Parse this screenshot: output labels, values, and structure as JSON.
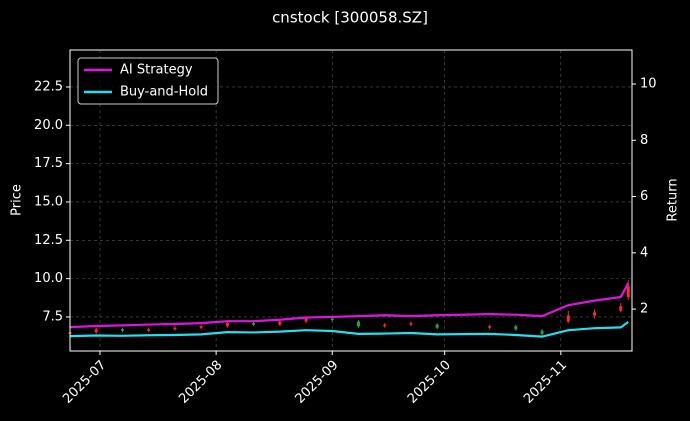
{
  "chart_data": {
    "type": "candlestick",
    "title": "cnstock [300058.SZ]",
    "y_label": "Price",
    "y2_label": "Return",
    "x": [
      "2025-06-23",
      "2025-06-30",
      "2025-07-07",
      "2025-07-14",
      "2025-07-21",
      "2025-07-28",
      "2025-08-04",
      "2025-08-11",
      "2025-08-18",
      "2025-08-25",
      "2025-09-01",
      "2025-09-08",
      "2025-09-15",
      "2025-09-22",
      "2025-09-29",
      "2025-10-13",
      "2025-10-20",
      "2025-10-27",
      "2025-11-03",
      "2025-11-10",
      "2025-11-17",
      "2025-11-19"
    ],
    "ohlc": {
      "open": [
        6.4,
        6.5,
        6.7,
        6.6,
        6.7,
        6.8,
        6.9,
        7.1,
        7.0,
        7.2,
        7.4,
        7.2,
        6.9,
        7.0,
        7.0,
        6.8,
        6.9,
        6.6,
        7.2,
        7.6,
        7.9,
        8.8
      ],
      "high": [
        6.6,
        6.8,
        6.8,
        6.8,
        6.9,
        7.0,
        7.2,
        7.2,
        7.3,
        7.5,
        7.5,
        7.3,
        7.1,
        7.2,
        7.1,
        7.0,
        7.0,
        6.7,
        7.9,
        8.0,
        8.4,
        9.9
      ],
      "low": [
        6.3,
        6.4,
        6.5,
        6.5,
        6.6,
        6.7,
        6.8,
        6.9,
        6.9,
        7.1,
        7.2,
        6.8,
        6.8,
        6.9,
        6.7,
        6.7,
        6.6,
        6.3,
        7.1,
        7.4,
        7.8,
        8.6
      ],
      "close": [
        6.5,
        6.7,
        6.6,
        6.7,
        6.8,
        6.9,
        7.1,
        7.0,
        7.2,
        7.4,
        7.3,
        6.9,
        7.0,
        7.1,
        6.8,
        6.9,
        6.7,
        6.4,
        7.6,
        7.8,
        8.2,
        9.5
      ]
    },
    "up_color": "#ff2a2a",
    "down_color": "#1fa84a",
    "series": [
      {
        "name": "AI Strategy",
        "color": "#e014e0",
        "axis": "y2",
        "values": [
          1.36,
          1.4,
          1.42,
          1.45,
          1.47,
          1.5,
          1.57,
          1.57,
          1.62,
          1.7,
          1.72,
          1.75,
          1.78,
          1.75,
          1.78,
          1.82,
          1.8,
          1.75,
          2.14,
          2.3,
          2.43,
          2.92
        ]
      },
      {
        "name": "Buy-and-Hold",
        "color": "#22e0f0",
        "axis": "y2",
        "values": [
          1.04,
          1.06,
          1.05,
          1.07,
          1.08,
          1.1,
          1.18,
          1.17,
          1.2,
          1.25,
          1.22,
          1.12,
          1.13,
          1.15,
          1.1,
          1.12,
          1.08,
          1.02,
          1.25,
          1.32,
          1.35,
          1.54
        ]
      }
    ],
    "xlim": [
      "2025-06-23",
      "2025-11-20"
    ],
    "xticks": [
      {
        "value": "2025-07-01",
        "label": "2025-07"
      },
      {
        "value": "2025-08-01",
        "label": "2025-08"
      },
      {
        "value": "2025-09-01",
        "label": "2025-09"
      },
      {
        "value": "2025-10-01",
        "label": "2025-10"
      },
      {
        "value": "2025-11-01",
        "label": "2025-11"
      }
    ],
    "ylim": [
      5.28,
      24.91
    ],
    "yticks": [
      7.5,
      {
        "value": 10,
        "label": "10.0"
      },
      12.5,
      {
        "value": 15,
        "label": "15.0"
      },
      17.5,
      {
        "value": 20,
        "label": "20.0"
      },
      22.5
    ],
    "y2lim": [
      0.51,
      11.21
    ],
    "y2ticks": [
      2,
      4,
      6,
      8,
      10
    ],
    "grid": true,
    "legend": "upper left"
  }
}
